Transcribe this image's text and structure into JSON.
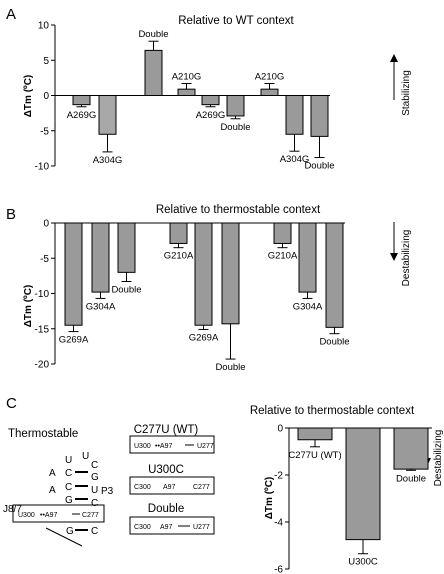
{
  "panels": {
    "A": "A",
    "B": "B",
    "C": "C"
  },
  "colors": {
    "bar_dark": "#9a9a9a",
    "bar_light": "#a8a8a8",
    "stroke": "#000000"
  },
  "axis_title": "ΔTm (ºC)",
  "stabilizing_label": "Stabilizing",
  "destabilizing_label": "Destabilizing",
  "diagram": {
    "title": "Thermostable",
    "stem_left": [
      "U",
      "C",
      "C",
      "G"
    ],
    "stem_right": [
      "C",
      "G",
      "U",
      "C"
    ],
    "pair_mark": "U",
    "loop_a1": "A",
    "loop_a2": "A",
    "p3": "P3",
    "j87": "J8/7",
    "bottom_g": "G",
    "bottom_c": "C",
    "box_main": {
      "left": "U300",
      "mid": "••A97",
      "right": "C277"
    },
    "variants": [
      {
        "title": "C277U (WT)",
        "left": "U300",
        "mid": "••A97",
        "right": "U277"
      },
      {
        "title": "U300C",
        "left": "C300",
        "mid": "A97",
        "right": "C277"
      },
      {
        "title": "Double",
        "left": "C300",
        "mid": "A97",
        "right": "U277"
      }
    ]
  },
  "chart_data": [
    {
      "type": "bar",
      "panel": "A",
      "title": "Relative to WT context",
      "ylabel": "ΔTm (ºC)",
      "ylim": [
        -10,
        10
      ],
      "yticks": [
        10,
        5,
        0,
        -5,
        -10
      ],
      "bars": [
        {
          "label": "A269G",
          "value": -1.3,
          "error": 0.3
        },
        {
          "label": "A304G",
          "value": -5.5,
          "error": 2.5
        },
        {
          "label": "Double",
          "value": 6.4,
          "error": 1.3
        },
        {
          "label": "A210G",
          "value": 0.9,
          "error": 0.8
        },
        {
          "label": "A269G",
          "value": -1.3,
          "error": 0.3
        },
        {
          "label": "Double",
          "value": -2.9,
          "error": 0.4
        },
        {
          "label": "A210G",
          "value": 0.9,
          "error": 0.8
        },
        {
          "label": "A304G",
          "value": -5.5,
          "error": 2.4
        },
        {
          "label": "Double",
          "value": -5.8,
          "error": 3.0
        }
      ]
    },
    {
      "type": "bar",
      "panel": "B",
      "title": "Relative to thermostable context",
      "ylabel": "ΔTm (ºC)",
      "ylim": [
        -20,
        0
      ],
      "yticks": [
        0,
        -5,
        -10,
        -15,
        -20
      ],
      "bars": [
        {
          "label": "G269A",
          "value": -14.5,
          "error": 0.9
        },
        {
          "label": "G304A",
          "value": -9.8,
          "error": 0.9
        },
        {
          "label": "Double",
          "value": -7.0,
          "error": 1.3
        },
        {
          "label": "G210A",
          "value": -2.9,
          "error": 0.6
        },
        {
          "label": "G269A",
          "value": -14.5,
          "error": 0.6
        },
        {
          "label": "Double",
          "value": -14.3,
          "error": 5.0
        },
        {
          "label": "G210A",
          "value": -2.9,
          "error": 0.6
        },
        {
          "label": "G304A",
          "value": -9.8,
          "error": 0.9
        },
        {
          "label": "Double",
          "value": -14.8,
          "error": 0.9
        }
      ]
    },
    {
      "type": "bar",
      "panel": "C",
      "title": "Relative to thermostable context",
      "ylabel": "ΔTm (ºC)",
      "ylim": [
        -6,
        0
      ],
      "yticks": [
        0,
        -2,
        -4,
        -6
      ],
      "bars": [
        {
          "label": "C277U (WT)",
          "value": -0.5,
          "error": 0.3
        },
        {
          "label": "U300C",
          "value": -4.75,
          "error": 0.6
        },
        {
          "label": "Double",
          "value": -1.75,
          "error": 0.05
        }
      ]
    }
  ]
}
